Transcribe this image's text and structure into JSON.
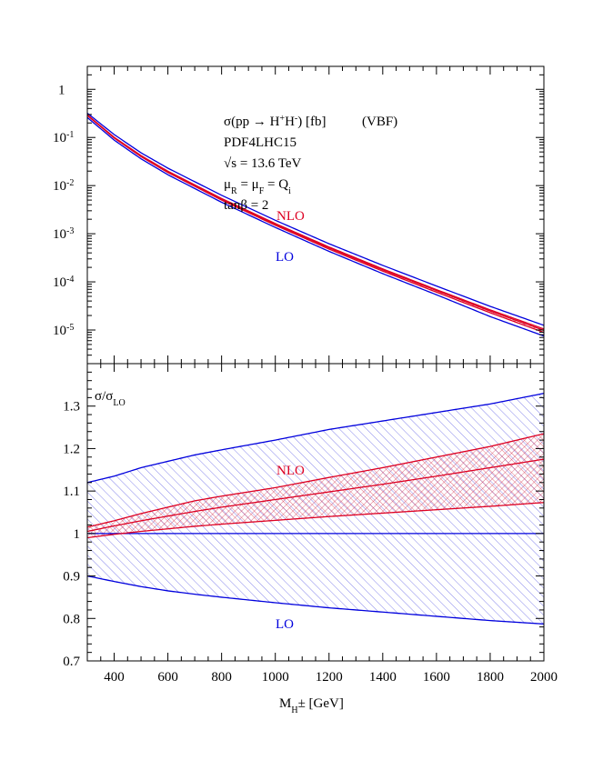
{
  "chart_data": [
    {
      "type": "line",
      "panel": "top",
      "yscale": "log",
      "xlim": [
        300,
        2000
      ],
      "ylim": [
        2e-06,
        3
      ],
      "annotations": {
        "line1_main": "σ(pp → H",
        "line1_sup1": "+",
        "line1_mid": "H",
        "line1_sup2": "-",
        "line1_end": ") [fb]",
        "line1_tag": "(VBF)",
        "line2": "PDF4LHC15",
        "line3": "√s = 13.6 TeV",
        "line4_mu1": "μ",
        "line4_sub1": "R",
        "line4_eq1": " = μ",
        "line4_sub2": "F",
        "line4_eq2": " = Q",
        "line4_sub3": "i",
        "line5": "tanβ = 2"
      },
      "series_labels": {
        "nlo": "NLO",
        "lo": "LO"
      },
      "y_ticks": [
        {
          "v": 1,
          "base": "1",
          "exp": ""
        },
        {
          "v": 0.1,
          "base": "10",
          "exp": "-1"
        },
        {
          "v": 0.01,
          "base": "10",
          "exp": "-2"
        },
        {
          "v": 0.001,
          "base": "10",
          "exp": "-3"
        },
        {
          "v": 0.0001,
          "base": "10",
          "exp": "-4"
        },
        {
          "v": 1e-05,
          "base": "10",
          "exp": "-5"
        }
      ],
      "series": [
        {
          "key": "lo_upper",
          "color": "#0000dd",
          "x": [
            300,
            400,
            500,
            600,
            800,
            1000,
            1200,
            1400,
            1600,
            1800,
            2000
          ],
          "y": [
            0.32,
            0.115,
            0.048,
            0.023,
            0.0063,
            0.0019,
            0.00062,
            0.00022,
            8.2e-05,
            3.1e-05,
            1.25e-05
          ]
        },
        {
          "key": "lo_lower",
          "color": "#0000dd",
          "x": [
            300,
            400,
            500,
            600,
            800,
            1000,
            1200,
            1400,
            1600,
            1800,
            2000
          ],
          "y": [
            0.26,
            0.088,
            0.036,
            0.0168,
            0.0045,
            0.00135,
            0.00043,
            0.000148,
            5.4e-05,
            1.9e-05,
            7.5e-06
          ]
        },
        {
          "key": "nlo_upper",
          "color": "#dd0022",
          "x": [
            300,
            400,
            500,
            600,
            800,
            1000,
            1200,
            1400,
            1600,
            1800,
            2000
          ],
          "y": [
            0.295,
            0.101,
            0.0421,
            0.0199,
            0.0054,
            0.00163,
            0.00053,
            0.000186,
            6.9e-05,
            2.62e-05,
            1.05e-05
          ]
        },
        {
          "key": "nlo_central",
          "color": "#dd0022",
          "x": [
            300,
            400,
            500,
            600,
            800,
            1000,
            1200,
            1400,
            1600,
            1800,
            2000
          ],
          "y": [
            0.29,
            0.099,
            0.041,
            0.0193,
            0.0052,
            0.00157,
            0.00051,
            0.000178,
            6.6e-05,
            2.48e-05,
            9.8e-06
          ]
        },
        {
          "key": "nlo_lower",
          "color": "#dd0022",
          "x": [
            300,
            400,
            500,
            600,
            800,
            1000,
            1200,
            1400,
            1600,
            1800,
            2000
          ],
          "y": [
            0.287,
            0.097,
            0.04,
            0.0187,
            0.005,
            0.0015,
            0.00048,
            0.000167,
            6.1e-05,
            2.28e-05,
            8.9e-06
          ]
        }
      ]
    },
    {
      "type": "line",
      "panel": "bottom",
      "xlim": [
        300,
        2000
      ],
      "ylim": [
        0.7,
        1.4
      ],
      "ylabel_main": "σ/σ",
      "ylabel_sub": "LO",
      "xlabel_main": "M",
      "xlabel_sub": "H",
      "xlabel_end": "± [GeV]",
      "series_labels": {
        "nlo": "NLO",
        "lo": "LO"
      },
      "y_ticks": [
        {
          "v": 0.7,
          "label": "0.7"
        },
        {
          "v": 0.8,
          "label": "0.8"
        },
        {
          "v": 0.9,
          "label": "0.9"
        },
        {
          "v": 1.0,
          "label": "1"
        },
        {
          "v": 1.1,
          "label": "1.1"
        },
        {
          "v": 1.2,
          "label": "1.2"
        },
        {
          "v": 1.3,
          "label": "1.3"
        }
      ],
      "x_ticks": [
        {
          "v": 400,
          "label": "400"
        },
        {
          "v": 600,
          "label": "600"
        },
        {
          "v": 800,
          "label": "800"
        },
        {
          "v": 1000,
          "label": "1000"
        },
        {
          "v": 1200,
          "label": "1200"
        },
        {
          "v": 1400,
          "label": "1400"
        },
        {
          "v": 1600,
          "label": "1600"
        },
        {
          "v": 1800,
          "label": "1800"
        },
        {
          "v": 2000,
          "label": "2000"
        }
      ],
      "series": [
        {
          "key": "lo_upper",
          "color": "#0000dd",
          "x": [
            300,
            400,
            500,
            600,
            700,
            800,
            1000,
            1200,
            1400,
            1600,
            1800,
            2000
          ],
          "y": [
            1.12,
            1.135,
            1.155,
            1.17,
            1.185,
            1.197,
            1.22,
            1.245,
            1.265,
            1.285,
            1.305,
            1.33
          ]
        },
        {
          "key": "lo_central",
          "color": "#0000dd",
          "x": [
            300,
            400,
            600,
            800,
            1000,
            1200,
            1400,
            1600,
            1800,
            2000
          ],
          "y": [
            1.0,
            1.0,
            1.0,
            1.0,
            1.0,
            1.0,
            1.0,
            1.0,
            1.0,
            1.0
          ]
        },
        {
          "key": "lo_lower",
          "color": "#0000dd",
          "x": [
            300,
            400,
            500,
            600,
            700,
            800,
            1000,
            1200,
            1400,
            1600,
            1800,
            2000
          ],
          "y": [
            0.9,
            0.887,
            0.875,
            0.865,
            0.857,
            0.85,
            0.837,
            0.825,
            0.815,
            0.805,
            0.795,
            0.787
          ]
        },
        {
          "key": "nlo_upper",
          "color": "#dd0022",
          "x": [
            300,
            400,
            500,
            600,
            700,
            800,
            1000,
            1200,
            1400,
            1600,
            1800,
            2000
          ],
          "y": [
            1.015,
            1.03,
            1.047,
            1.062,
            1.077,
            1.088,
            1.108,
            1.132,
            1.155,
            1.18,
            1.205,
            1.235
          ]
        },
        {
          "key": "nlo_central",
          "color": "#dd0022",
          "x": [
            300,
            400,
            500,
            600,
            700,
            800,
            1000,
            1200,
            1400,
            1600,
            1800,
            2000
          ],
          "y": [
            1.005,
            1.018,
            1.03,
            1.041,
            1.052,
            1.062,
            1.08,
            1.098,
            1.116,
            1.135,
            1.155,
            1.175
          ]
        },
        {
          "key": "nlo_lower",
          "color": "#dd0022",
          "x": [
            300,
            400,
            500,
            600,
            700,
            800,
            1000,
            1200,
            1400,
            1600,
            1800,
            2000
          ],
          "y": [
            0.99,
            0.998,
            1.005,
            1.011,
            1.017,
            1.022,
            1.031,
            1.04,
            1.048,
            1.056,
            1.064,
            1.073
          ]
        }
      ]
    }
  ]
}
